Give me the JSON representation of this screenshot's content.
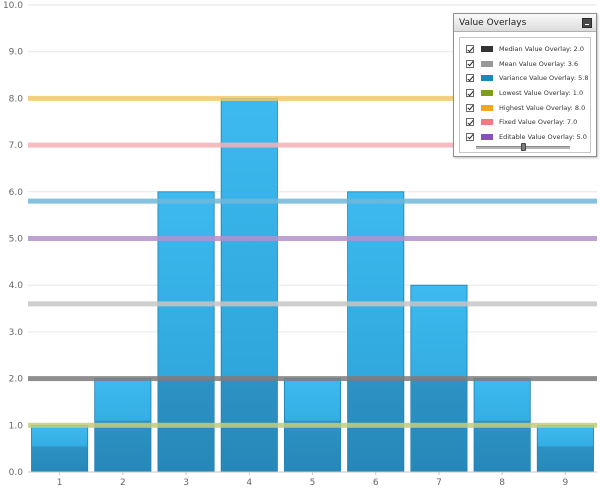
{
  "chart_data": {
    "type": "bar",
    "title": "",
    "xlabel": "",
    "ylabel": "",
    "categories": [
      "1",
      "2",
      "3",
      "4",
      "5",
      "6",
      "7",
      "8",
      "9"
    ],
    "values": [
      1,
      2,
      6,
      8,
      2,
      6,
      4,
      2,
      1
    ],
    "ylim": [
      0,
      10
    ],
    "yticks": [
      "0.0",
      "1.0",
      "2.0",
      "3.0",
      "4.0",
      "5.0",
      "6.0",
      "7.0",
      "8.0",
      "9.0",
      "10.0"
    ],
    "grid": "horizontal",
    "bar_color": "#36b1e6",
    "bar_dark_color": "#2a8ec0",
    "overlays": [
      {
        "value": 2.0,
        "color": "#7d7d7d"
      },
      {
        "value": 3.6,
        "color": "#c6c6c6"
      },
      {
        "value": 5.8,
        "color": "#6fb7d8"
      },
      {
        "value": 1.0,
        "color": "#c2cf78"
      },
      {
        "value": 8.0,
        "color": "#f1c96a"
      },
      {
        "value": 7.0,
        "color": "#f7b1b7"
      },
      {
        "value": 5.0,
        "color": "#b293cc"
      }
    ]
  },
  "panel": {
    "title": "Value Overlays",
    "items": [
      {
        "label": "Median Value Overlay: 2.0",
        "color": "#333333",
        "checked": true
      },
      {
        "label": "Mean Value Overlay: 3.6",
        "color": "#999999",
        "checked": true
      },
      {
        "label": "Variance Value Overlay: 5.8",
        "color": "#1a88b8",
        "checked": true
      },
      {
        "label": "Lowest Value Overlay: 1.0",
        "color": "#7e9c1e",
        "checked": true
      },
      {
        "label": "Highest Value Overlay: 8.0",
        "color": "#f0a81e",
        "checked": true
      },
      {
        "label": "Fixed Value Overlay: 7.0",
        "color": "#f07a80",
        "checked": true
      },
      {
        "label": "Editable Value Overlay: 5.0",
        "color": "#8a4fb8",
        "checked": true
      }
    ],
    "slider_value": 5.0,
    "slider_range": [
      0,
      10
    ]
  }
}
